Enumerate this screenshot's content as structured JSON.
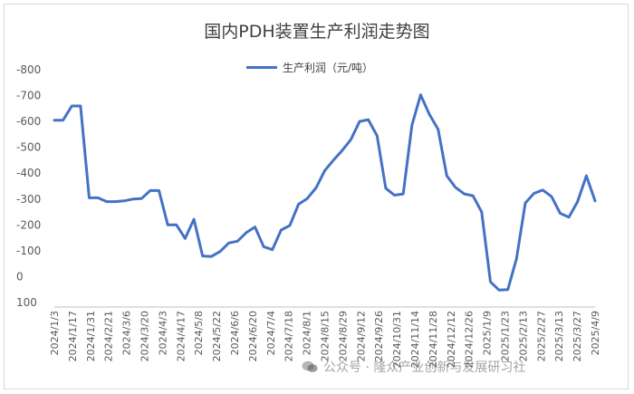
{
  "chart_data": {
    "type": "line",
    "title": "国内PDH装置生产利润走势图",
    "series": [
      {
        "name": "生产利润（元/吨）",
        "color": "#4472c4",
        "values": [
          -605,
          -605,
          -660,
          -660,
          -305,
          -305,
          -290,
          -290,
          -293,
          -300,
          -302,
          -333,
          -333,
          -200,
          -200,
          -148,
          -222,
          -80,
          -78,
          -97,
          -130,
          -137,
          -170,
          -192,
          -116,
          -104,
          -180,
          -198,
          -280,
          -302,
          -343,
          -410,
          -450,
          -488,
          -530,
          -600,
          -607,
          -545,
          -342,
          -315,
          -320,
          -585,
          -703,
          -628,
          -570,
          -390,
          -345,
          -320,
          -313,
          -250,
          20,
          52,
          50,
          -70,
          -285,
          -322,
          -335,
          -310,
          -245,
          -230,
          -290,
          -390,
          -293
        ]
      }
    ],
    "x_tick_labels": [
      "2024/1/3",
      "2024/1/17",
      "2024/1/31",
      "2024/2/21",
      "2024/3/6",
      "2024/3/20",
      "2024/4/3",
      "2024/4/17",
      "2024/5/8",
      "2024/5/22",
      "2024/6/6",
      "2024/6/20",
      "2024/7/4",
      "2024/7/18",
      "2024/8/1",
      "2024/8/15",
      "2024/8/29",
      "2024/9/12",
      "2024/9/26",
      "2024/10/31",
      "2024/11/14",
      "2024/11/28",
      "2024/12/12",
      "2024/12/26",
      "2025/1/9",
      "2025/1/23",
      "2025/2/13",
      "2025/2/27",
      "2025/3/13",
      "2025/3/27",
      "2025/4/9"
    ],
    "y_tick_labels": [
      "-800",
      "-700",
      "-600",
      "-500",
      "-400",
      "-300",
      "-200",
      "-100",
      "0",
      "100"
    ],
    "ylim": [
      -800,
      100
    ],
    "y_axis_reversed": true,
    "grid": false,
    "legend": "top-center"
  },
  "watermark": {
    "icon": "wechat-icon",
    "text": "公众号 · 隆众产业创新与发展研习社"
  }
}
